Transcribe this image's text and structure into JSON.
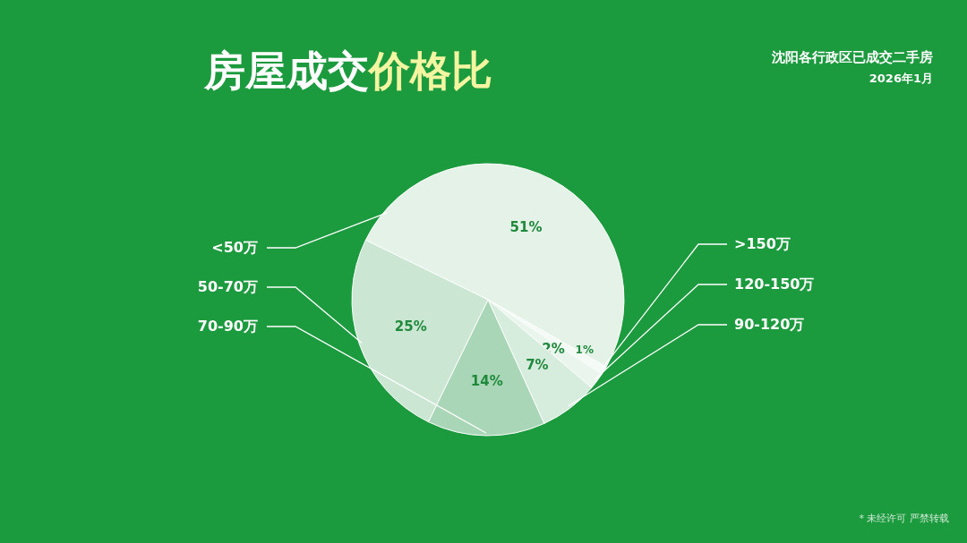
{
  "chart_data": {
    "type": "pie",
    "title": "房屋成交价格比",
    "subtitle": "沈阳各行政区已成交二手房",
    "annotations": [
      "2026年1月",
      "* 未经许可 严禁转载"
    ],
    "categories": [
      "<50万",
      ">150万",
      "120-150万",
      "90-120万",
      "70-90万",
      "50-70万"
    ],
    "values": [
      51,
      1,
      2,
      7,
      14,
      25
    ],
    "value_labels": [
      "51%",
      "1%",
      "2%",
      "7%",
      "14%",
      "25%"
    ],
    "colors": [
      "#e4f2e8",
      "#f4faf6",
      "#eaf5ee",
      "#d6ecdd",
      "#a9d6b6",
      "#cbe6d3"
    ],
    "legend": false
  }
}
